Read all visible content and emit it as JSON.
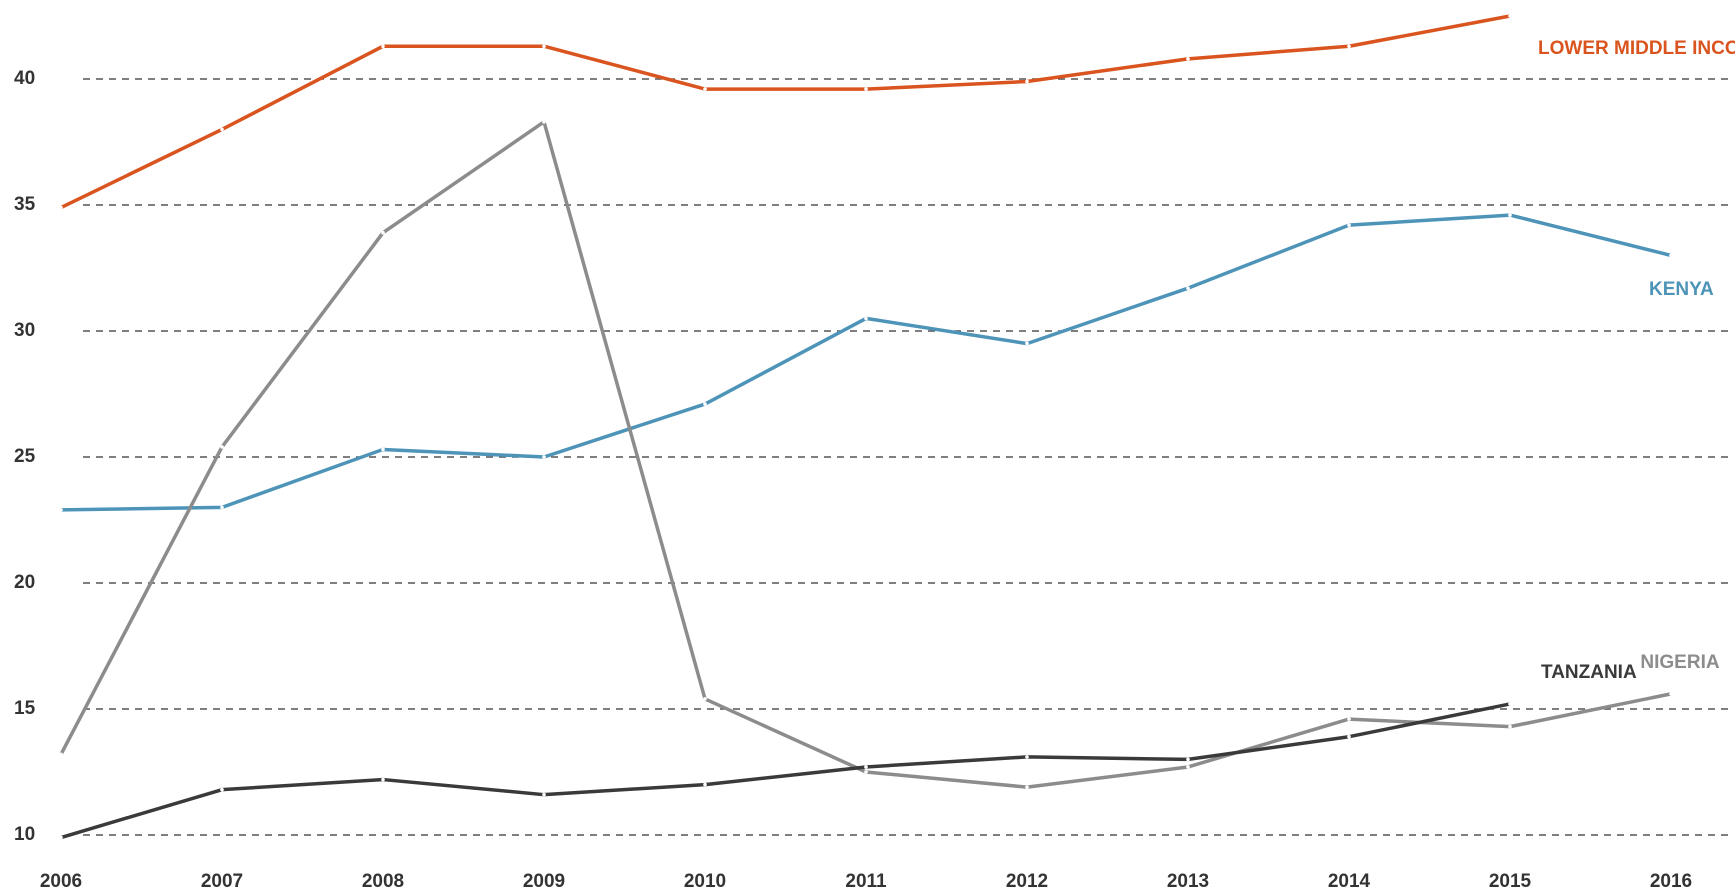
{
  "chart_data": {
    "type": "line",
    "categories": [
      "2006",
      "2007",
      "2008",
      "2009",
      "2010",
      "2011",
      "2012",
      "2013",
      "2014",
      "2015",
      "2016"
    ],
    "ylim": [
      10,
      43
    ],
    "yticks": [
      10,
      15,
      20,
      25,
      30,
      35,
      40
    ],
    "grid": true,
    "series": [
      {
        "name": "LOWER MIDDLE INCOME",
        "color": "#d9541e",
        "values": [
          34.9,
          38.0,
          41.3,
          41.3,
          39.6,
          39.6,
          39.9,
          40.8,
          41.3,
          42.5,
          null
        ]
      },
      {
        "name": "KENYA",
        "color": "#4d94b8",
        "values": [
          22.9,
          23.0,
          25.3,
          25.0,
          27.1,
          30.5,
          29.5,
          31.7,
          34.2,
          34.6,
          33.0
        ]
      },
      {
        "name": "NIGERIA",
        "color": "#8c8c8c",
        "values": [
          13.2,
          25.4,
          33.9,
          38.3,
          15.4,
          12.5,
          11.9,
          12.7,
          14.6,
          14.3,
          15.6
        ]
      },
      {
        "name": "TANZANIA",
        "color": "#3a3a3a",
        "values": [
          9.9,
          11.8,
          12.2,
          11.6,
          12.0,
          12.7,
          13.1,
          13.0,
          13.9,
          15.2,
          null
        ]
      }
    ]
  }
}
